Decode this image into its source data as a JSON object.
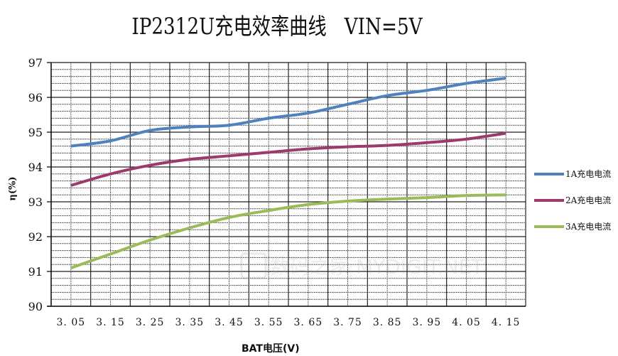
{
  "chart_data": {
    "type": "line",
    "title": "IP2312U充电效率曲线   VIN=5V",
    "xlabel": "BAT电压(V)",
    "ylabel": "η(%)",
    "ylim": [
      90,
      97
    ],
    "yticks": [
      90,
      91,
      92,
      93,
      94,
      95,
      96,
      97
    ],
    "grid": true,
    "legend_position": "right",
    "categories": [
      "3.05",
      "3.15",
      "3.25",
      "3.35",
      "3.45",
      "3.55",
      "3.65",
      "3.75",
      "3.85",
      "3.95",
      "4.05",
      "4.15"
    ],
    "series": [
      {
        "name": "1A充电电流",
        "color": "#4f81bd",
        "values": [
          94.6,
          94.75,
          95.05,
          95.15,
          95.2,
          95.4,
          95.55,
          95.8,
          96.05,
          96.2,
          96.4,
          96.55
        ]
      },
      {
        "name": "2A充电电流",
        "color": "#9b3a6b",
        "values": [
          93.47,
          93.8,
          94.05,
          94.22,
          94.32,
          94.42,
          94.52,
          94.58,
          94.62,
          94.7,
          94.8,
          94.97
        ]
      },
      {
        "name": "3A充电电流",
        "color": "#9bbb59",
        "values": [
          91.1,
          91.5,
          91.9,
          92.25,
          92.55,
          92.75,
          92.92,
          93.02,
          93.08,
          93.12,
          93.18,
          93.2
        ]
      }
    ],
    "watermark": "数码之家 MYDIGIT.NET"
  },
  "header": {
    "title": "IP2312U充电效率曲线   VIN=5V"
  },
  "axes": {
    "x_title": "BAT电压(V)",
    "y_title": "η(%)"
  },
  "legend": {
    "items": [
      "1A充电电流",
      "2A充电电流",
      "3A充电电流"
    ]
  }
}
